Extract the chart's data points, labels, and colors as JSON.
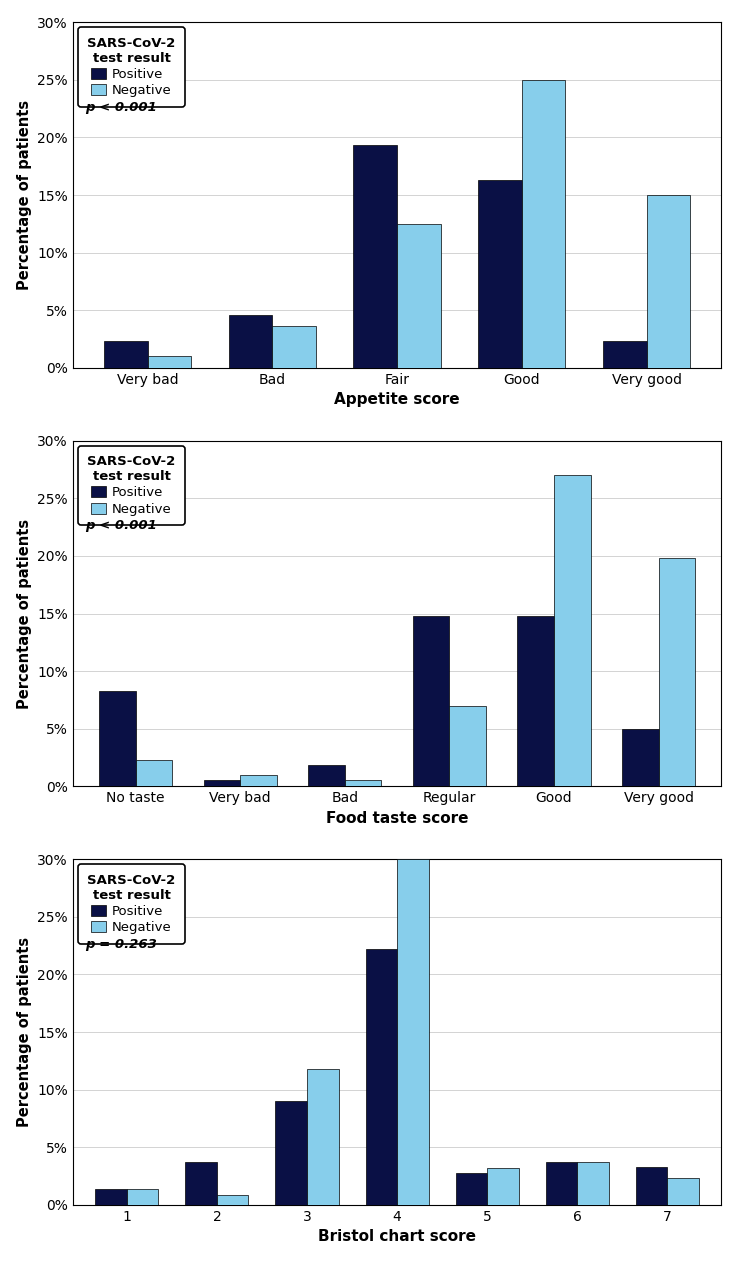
{
  "chart1": {
    "categories": [
      "Very bad",
      "Bad",
      "Fair",
      "Good",
      "Very good"
    ],
    "positive": [
      2.3,
      4.6,
      19.3,
      16.3,
      2.3
    ],
    "negative": [
      1.0,
      3.6,
      12.5,
      25.0,
      15.0
    ],
    "xlabel": "Appetite score",
    "pvalue": "p < 0.001"
  },
  "chart2": {
    "categories": [
      "No taste",
      "Very bad",
      "Bad",
      "Regular",
      "Good",
      "Very good"
    ],
    "positive": [
      8.3,
      0.6,
      1.9,
      14.8,
      14.8,
      5.0
    ],
    "negative": [
      2.3,
      1.0,
      0.6,
      7.0,
      27.0,
      19.8
    ],
    "xlabel": "Food taste score",
    "pvalue": "p < 0.001"
  },
  "chart3": {
    "categories": [
      "1",
      "2",
      "3",
      "4",
      "5",
      "6",
      "7"
    ],
    "positive": [
      1.4,
      3.7,
      9.0,
      22.2,
      2.8,
      3.7,
      3.3
    ],
    "negative": [
      1.4,
      0.9,
      11.8,
      30.0,
      3.2,
      3.7,
      2.3
    ],
    "xlabel": "Bristol chart score",
    "pvalue": "p = 0.263"
  },
  "ylabel": "Percentage of patients",
  "ylim": [
    0,
    30
  ],
  "yticks": [
    0,
    5,
    10,
    15,
    20,
    25,
    30
  ],
  "yticklabels": [
    "0%",
    "5%",
    "10%",
    "15%",
    "20%",
    "25%",
    "30%"
  ],
  "color_positive": "#0a1045",
  "color_negative": "#87ceeb",
  "legend_title_line1": "SARS-CoV-2",
  "legend_title_line2": "test result",
  "legend_positive": "Positive",
  "legend_negative": "Negative",
  "bar_width": 0.35
}
